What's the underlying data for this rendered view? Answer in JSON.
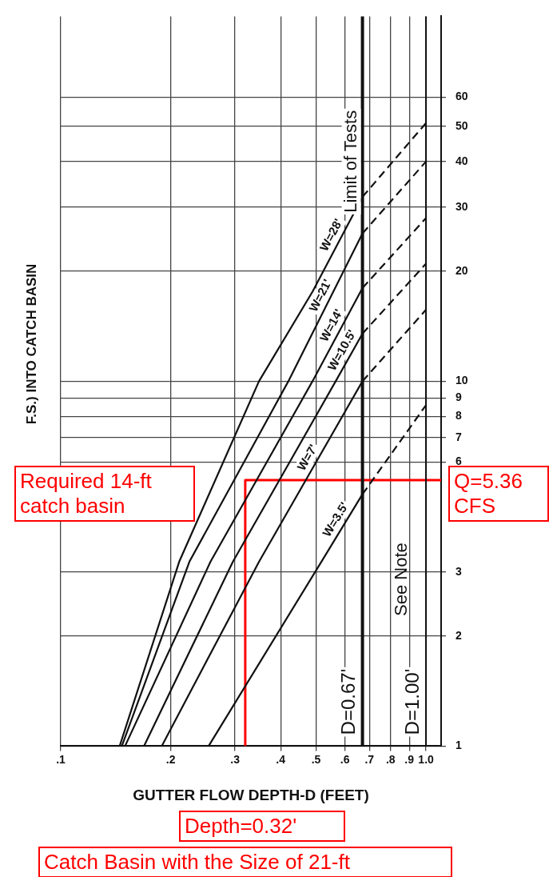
{
  "chart_data": {
    "type": "line",
    "ylabel": "F.S.) INTO CATCH BASIN",
    "xlabel": "GUTTER FLOW DEPTH-D (FEET)",
    "log": "xy",
    "grid": true,
    "legend": false,
    "marker": "none",
    "xlim": [
      0.1,
      1.1
    ],
    "xticks": [
      {
        "value": 0.1,
        "label": ".1"
      },
      {
        "value": 0.2,
        "label": ".2"
      },
      {
        "value": 0.3,
        "label": ".3"
      },
      {
        "value": 0.4,
        "label": ".4"
      },
      {
        "value": 0.5,
        "label": ".5"
      },
      {
        "value": 0.6,
        "label": ".6"
      },
      {
        "value": 0.7,
        "label": ".7"
      },
      {
        "value": 0.8,
        "label": ".8"
      },
      {
        "value": 0.9,
        "label": ".9"
      },
      {
        "value": 1,
        "label": "1.0"
      }
    ],
    "ylim": [
      1,
      100
    ],
    "yticks": [
      1,
      2,
      3,
      6,
      7,
      8,
      9,
      10,
      20,
      30,
      40,
      50,
      60
    ],
    "series": [
      {
        "name": "W=28'",
        "color": "#111111",
        "line_style": "solid",
        "x": [
          0.145,
          0.211,
          0.349,
          0.489,
          0.67
        ],
        "values": [
          1,
          3.2,
          10,
          17.6,
          32
        ]
      },
      {
        "color": "#111111",
        "line_style": "dashed",
        "x": [
          0.67,
          1
        ],
        "values": [
          32,
          51
        ]
      },
      {
        "name": "W=21'",
        "color": "#111111",
        "line_style": "solid",
        "x": [
          0.147,
          0.225,
          0.42,
          0.67
        ],
        "values": [
          1,
          3.2,
          10,
          25.4
        ]
      },
      {
        "color": "#111111",
        "line_style": "dashed",
        "x": [
          0.67,
          1
        ],
        "values": [
          25.4,
          40
        ]
      },
      {
        "name": "W=14'",
        "color": "#111111",
        "line_style": "solid",
        "x": [
          0.15,
          0.257,
          0.489,
          0.67
        ],
        "values": [
          1,
          3.2,
          10,
          18
        ]
      },
      {
        "color": "#111111",
        "line_style": "dashed",
        "x": [
          0.67,
          1
        ],
        "values": [
          18,
          28
        ]
      },
      {
        "name": "W=10.5'",
        "color": "#111111",
        "line_style": "solid",
        "x": [
          0.169,
          0.296,
          0.566,
          0.67
        ],
        "values": [
          1,
          3.2,
          10,
          13.5
        ]
      },
      {
        "color": "#111111",
        "line_style": "dashed",
        "x": [
          0.67,
          1
        ],
        "values": [
          13.5,
          21
        ]
      },
      {
        "name": "W=7'",
        "color": "#111111",
        "line_style": "solid",
        "x": [
          0.189,
          0.349,
          0.67
        ],
        "values": [
          1,
          3.2,
          10
        ]
      },
      {
        "color": "#111111",
        "line_style": "dashed",
        "x": [
          0.67,
          1
        ],
        "values": [
          10,
          15.7
        ]
      },
      {
        "name": "W=3.5'",
        "color": "#111111",
        "line_style": "solid",
        "x": [
          0.254,
          0.517,
          0.67
        ],
        "values": [
          1,
          3.2,
          4.9
        ]
      },
      {
        "color": "#111111",
        "line_style": "dashed",
        "x": [
          0.67,
          1
        ],
        "values": [
          4.9,
          8.6
        ]
      },
      {
        "color": "#ff0000",
        "line_style": "solid",
        "x": [
          0.32,
          0.32,
          1.1
        ],
        "values": [
          1,
          5.36,
          5.36
        ]
      }
    ],
    "ref_lines": [
      {
        "axis": "x",
        "value": 0.67,
        "label": "D=0.67'",
        "color": "#111111"
      },
      {
        "axis": "x",
        "value": 1,
        "label": "D=1.00'",
        "color": "#111111"
      }
    ],
    "annotations": [
      {
        "text": "Limit of Tests",
        "x": 0.67,
        "y": 40
      },
      "See Note",
      "Required 14-ft catch basin",
      "Q=5.36 CFS",
      "Depth=0.32'",
      "Catch Basin with the Size of 21-ft"
    ]
  }
}
